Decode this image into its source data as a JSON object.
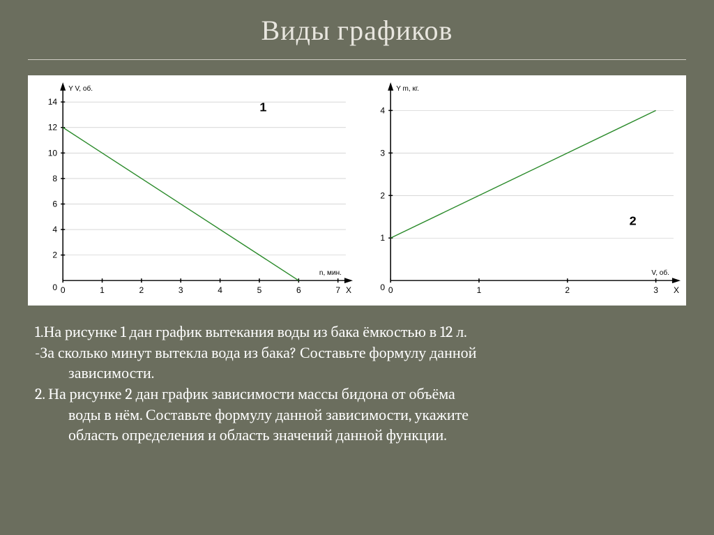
{
  "title": "Виды графиков",
  "chart1": {
    "type": "line",
    "label": "1",
    "y_unit_label": "Y V, об.",
    "x_unit_label": "n, мин.",
    "x_axis_mark": "X",
    "x_ticks": [
      0,
      1,
      2,
      3,
      4,
      5,
      6,
      7
    ],
    "y_ticks": [
      2,
      4,
      6,
      8,
      10,
      12,
      14
    ],
    "xlim": [
      0,
      7.2
    ],
    "ylim": [
      0,
      15
    ],
    "line_points": [
      [
        0,
        12
      ],
      [
        6,
        0
      ]
    ],
    "line_color": "#2a8a2a",
    "grid_color": "#bfbfbf",
    "background_color": "#ffffff",
    "axis_color": "#000000",
    "tick_font_size": 12
  },
  "chart2": {
    "type": "line",
    "label": "2",
    "y_unit_label": "Y m, кг.",
    "x_unit_label": "V, об.",
    "x_axis_mark": "X",
    "x_ticks": [
      0,
      1,
      2,
      3
    ],
    "y_ticks": [
      1,
      2,
      3,
      4
    ],
    "xlim": [
      0,
      3.2
    ],
    "ylim": [
      0,
      4.5
    ],
    "line_points": [
      [
        0,
        1
      ],
      [
        3,
        4
      ]
    ],
    "line_color": "#2a8a2a",
    "grid_color": "#bfbfbf",
    "background_color": "#ffffff",
    "axis_color": "#000000",
    "tick_font_size": 12
  },
  "text": {
    "line1": "1.На  рисунке 1 дан график вытекания воды из бака ёмкостью в 12 л.",
    "line2": "-За сколько минут вытекла вода из бака?  Составьте формулу данной",
    "line3": "зависимости.",
    "line4": "2. На рисунке 2 дан график зависимости массы бидона от объёма",
    "line5": "воды в нём. Составьте формулу данной зависимости, укажите",
    "line6": "область определения и область значений данной функции."
  }
}
